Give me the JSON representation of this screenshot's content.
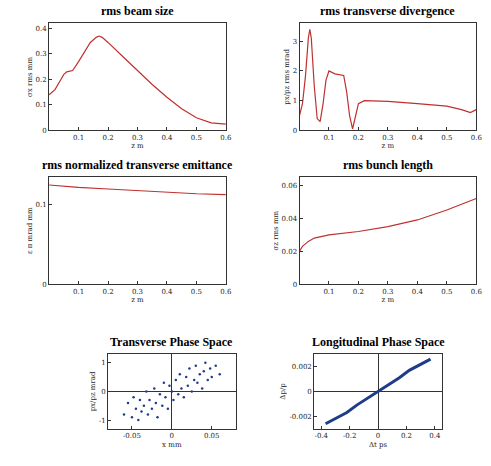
{
  "chart_data": [
    {
      "type": "line",
      "title": "rms beam size",
      "x_label": "z m",
      "y_label": "σx rms mm",
      "x": [
        0,
        0.02,
        0.04,
        0.05,
        0.06,
        0.08,
        0.1,
        0.12,
        0.14,
        0.16,
        0.17,
        0.18,
        0.2,
        0.25,
        0.3,
        0.35,
        0.4,
        0.45,
        0.5,
        0.55,
        0.6
      ],
      "values": [
        0.14,
        0.16,
        0.2,
        0.22,
        0.23,
        0.235,
        0.27,
        0.31,
        0.345,
        0.365,
        0.37,
        0.365,
        0.345,
        0.29,
        0.235,
        0.18,
        0.13,
        0.085,
        0.05,
        0.03,
        0.025
      ],
      "color": "#c03030",
      "xlim": [
        0,
        0.6
      ],
      "ylim": [
        0,
        0.42
      ],
      "xticks": [
        0.1,
        0.2,
        0.3,
        0.4,
        0.5,
        0.6
      ],
      "yticks": [
        0,
        0.1,
        0.2,
        0.3,
        0.4
      ]
    },
    {
      "type": "line",
      "title": "rms transverse divergence",
      "x_label": "z m",
      "y_label": "px/pz rms mrad",
      "x": [
        0,
        0.01,
        0.02,
        0.03,
        0.035,
        0.04,
        0.05,
        0.06,
        0.07,
        0.08,
        0.09,
        0.1,
        0.12,
        0.15,
        0.16,
        0.17,
        0.18,
        0.19,
        0.2,
        0.22,
        0.25,
        0.3,
        0.4,
        0.5,
        0.55,
        0.58,
        0.6
      ],
      "values": [
        0.5,
        0.9,
        1.8,
        3.1,
        3.4,
        3.1,
        1.5,
        0.4,
        0.3,
        0.9,
        1.7,
        2.0,
        1.9,
        1.85,
        1.3,
        0.5,
        0.05,
        0.5,
        0.9,
        1.0,
        1.0,
        0.98,
        0.9,
        0.82,
        0.7,
        0.6,
        0.7
      ],
      "color": "#c03030",
      "xlim": [
        0,
        0.6
      ],
      "ylim": [
        0,
        3.6
      ],
      "xticks": [
        0.1,
        0.2,
        0.3,
        0.4,
        0.5,
        0.6
      ],
      "yticks": [
        0,
        1,
        2,
        3
      ]
    },
    {
      "type": "line",
      "title": "rms normalized transverse emittance",
      "x_label": "z m",
      "y_label": "ε π mrad mm",
      "x": [
        0,
        0.1,
        0.2,
        0.3,
        0.4,
        0.5,
        0.6
      ],
      "values": [
        0.125,
        0.122,
        0.12,
        0.118,
        0.116,
        0.114,
        0.113
      ],
      "color": "#c03030",
      "xlim": [
        0,
        0.6
      ],
      "ylim": [
        0,
        0.135
      ],
      "xticks": [
        0.1,
        0.2,
        0.3,
        0.4,
        0.5,
        0.6
      ],
      "yticks": [
        0,
        0.1
      ]
    },
    {
      "type": "line",
      "title": "rms bunch length",
      "x_label": "z m",
      "y_label": "σz rms mm",
      "x": [
        0,
        0.01,
        0.03,
        0.05,
        0.1,
        0.2,
        0.3,
        0.4,
        0.5,
        0.6
      ],
      "values": [
        0.02,
        0.023,
        0.026,
        0.028,
        0.03,
        0.032,
        0.035,
        0.039,
        0.045,
        0.052
      ],
      "color": "#c03030",
      "xlim": [
        0,
        0.6
      ],
      "ylim": [
        0,
        0.065
      ],
      "xticks": [
        0.1,
        0.2,
        0.3,
        0.4,
        0.5,
        0.6
      ],
      "yticks": [
        0,
        0.02,
        0.04,
        0.06
      ]
    },
    {
      "type": "scatter",
      "title": "Transverse Phase Space",
      "x_label": "x mm",
      "y_label": "px/pz mrad",
      "x": [
        -0.06,
        -0.055,
        -0.05,
        -0.048,
        -0.045,
        -0.042,
        -0.04,
        -0.038,
        -0.035,
        -0.032,
        -0.03,
        -0.028,
        -0.025,
        -0.022,
        -0.02,
        -0.018,
        -0.015,
        -0.012,
        -0.01,
        -0.008,
        -0.005,
        -0.003,
        0,
        0.002,
        0.005,
        0.008,
        0.01,
        0.012,
        0.015,
        0.018,
        0.02,
        0.022,
        0.025,
        0.028,
        0.03,
        0.032,
        0.035,
        0.038,
        0.04,
        0.042,
        0.045,
        0.048,
        0.05,
        0.055,
        0.06
      ],
      "values": [
        -0.8,
        -0.4,
        -0.9,
        -0.2,
        -0.6,
        -1.0,
        -0.3,
        -0.7,
        -0.5,
        0.0,
        -0.8,
        -0.3,
        -0.6,
        0.1,
        -0.4,
        -0.9,
        -0.1,
        -0.5,
        0.3,
        -0.2,
        -0.6,
        0.2,
        0.0,
        -0.3,
        0.4,
        -0.1,
        0.6,
        0.1,
        -0.2,
        0.5,
        0.2,
        0.8,
        0.0,
        0.4,
        0.9,
        0.3,
        0.6,
        0.1,
        0.7,
        1.0,
        0.4,
        0.8,
        0.5,
        0.9,
        0.6
      ],
      "color": "#1f3c88",
      "xlim": [
        -0.08,
        0.08
      ],
      "ylim": [
        -1.3,
        1.3
      ],
      "xticks": [
        -0.05,
        0,
        0.05
      ],
      "yticks": [
        -1,
        0,
        1
      ]
    },
    {
      "type": "line",
      "title": "Longitudinal Phase Space",
      "x_label": "Δt ps",
      "y_label": "Δp/p",
      "x": [
        -0.37,
        -0.3,
        -0.22,
        -0.15,
        -0.08,
        0,
        0.08,
        0.15,
        0.22,
        0.3,
        0.37
      ],
      "values": [
        -0.0026,
        -0.0022,
        -0.0017,
        -0.0011,
        -0.0006,
        0,
        0.0006,
        0.0011,
        0.0017,
        0.0022,
        0.0026
      ],
      "color": "#1f3c88",
      "xlim": [
        -0.45,
        0.45
      ],
      "ylim": [
        -0.003,
        0.003
      ],
      "xticks": [
        -0.4,
        -0.2,
        0,
        0.2,
        0.4
      ],
      "yticks": [
        -0.002,
        0,
        0.002
      ]
    }
  ]
}
